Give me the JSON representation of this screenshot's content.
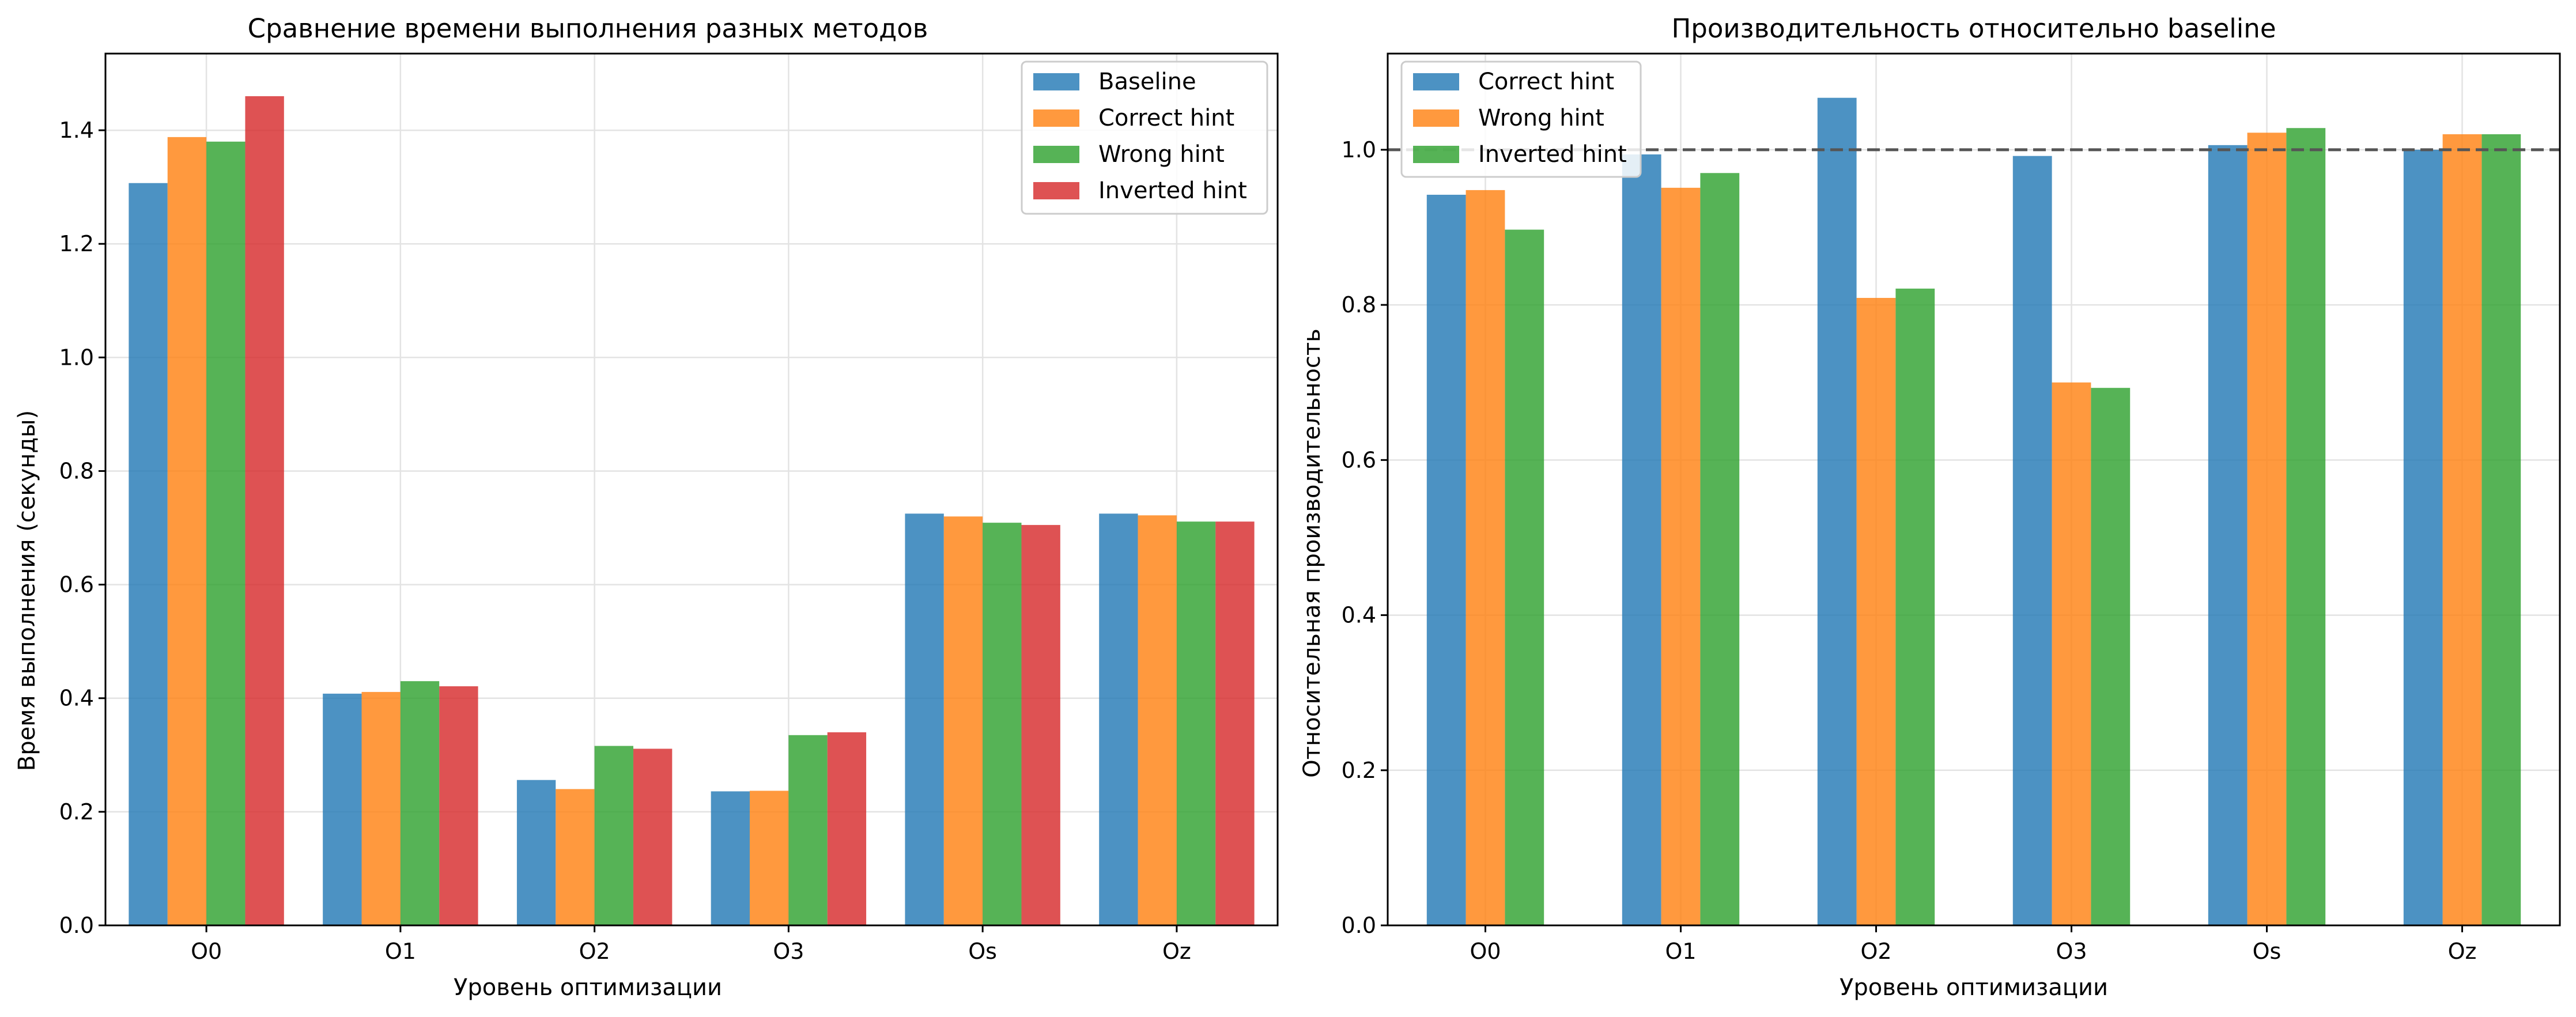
{
  "chart_data": [
    {
      "type": "bar",
      "title": "Сравнение времени выполнения разных методов",
      "xlabel": "Уровень оптимизации",
      "ylabel": "Время выполнения (секунды)",
      "categories": [
        "O0",
        "O1",
        "O2",
        "O3",
        "Os",
        "Oz"
      ],
      "ylim": [
        0,
        1.535
      ],
      "yticks": [
        "0.0",
        "0.2",
        "0.4",
        "0.6",
        "0.8",
        "1.0",
        "1.2",
        "1.4"
      ],
      "grid": true,
      "legend_position": "top-right",
      "series": [
        {
          "name": "Baseline",
          "color": "#1f77b4",
          "values": [
            1.307,
            0.408,
            0.256,
            0.236,
            0.725,
            0.725
          ]
        },
        {
          "name": "Correct hint",
          "color": "#ff7f0e",
          "values": [
            1.388,
            0.411,
            0.24,
            0.237,
            0.72,
            0.722
          ]
        },
        {
          "name": "Wrong hint",
          "color": "#2ca02c",
          "values": [
            1.38,
            0.43,
            0.316,
            0.335,
            0.709,
            0.711
          ]
        },
        {
          "name": "Inverted hint",
          "color": "#d62728",
          "values": [
            1.46,
            0.421,
            0.311,
            0.34,
            0.705,
            0.711
          ]
        }
      ]
    },
    {
      "type": "bar",
      "title": "Производительность относительно baseline",
      "xlabel": "Уровень оптимизации",
      "ylabel": "Относительная производительность",
      "categories": [
        "O0",
        "O1",
        "O2",
        "O3",
        "Os",
        "Oz"
      ],
      "ylim": [
        0,
        1.124
      ],
      "yticks": [
        "0.0",
        "0.2",
        "0.4",
        "0.6",
        "0.8",
        "1.0"
      ],
      "grid": true,
      "legend_position": "top-left",
      "reference_line": {
        "y": 1.0,
        "style": "dashed",
        "color": "#555555"
      },
      "series": [
        {
          "name": "Correct hint",
          "color": "#1f77b4",
          "values": [
            0.942,
            0.994,
            1.067,
            0.992,
            1.006,
            1.0
          ]
        },
        {
          "name": "Wrong hint",
          "color": "#ff7f0e",
          "values": [
            0.948,
            0.951,
            0.809,
            0.7,
            1.022,
            1.02
          ]
        },
        {
          "name": "Inverted hint",
          "color": "#2ca02c",
          "values": [
            0.897,
            0.97,
            0.821,
            0.693,
            1.028,
            1.02
          ]
        }
      ]
    }
  ]
}
